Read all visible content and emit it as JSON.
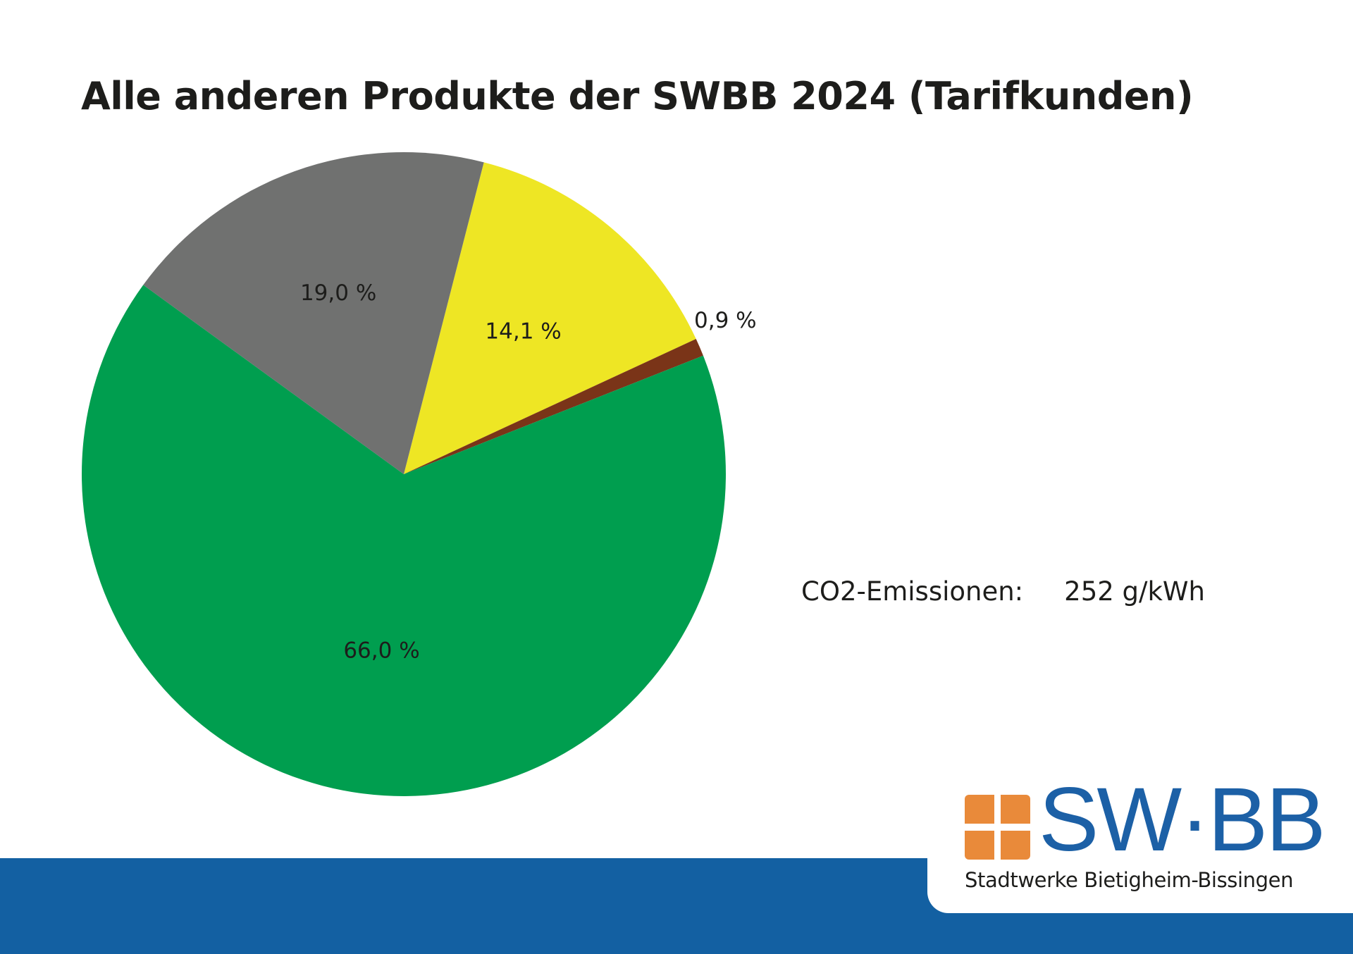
{
  "chart_data": {
    "type": "pie",
    "title": "Alle anderen Produkte der SWBB 2024 (Tarifkunden)",
    "slices": [
      {
        "value": 14.1,
        "label": "14,1 %",
        "color": "#eee624"
      },
      {
        "value": 0.9,
        "label": "0,9 %",
        "color": "#7a3418"
      },
      {
        "value": 66.0,
        "label": "66,0 %",
        "color": "#009e4f"
      },
      {
        "value": 19.0,
        "label": "19,0 %",
        "color": "#707170"
      }
    ],
    "unit": "%"
  },
  "co2": {
    "label": "CO2-Emissionen:",
    "value": "252 g/kWh"
  },
  "logo": {
    "mark": "SW·BB",
    "subtitle": "Stadtwerke Bietigheim-Bissingen",
    "brand_blue": "#1c60a6",
    "brand_orange": "#e98a3a",
    "band_color": "#1360a2"
  }
}
